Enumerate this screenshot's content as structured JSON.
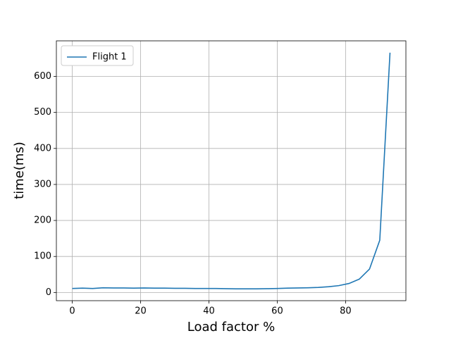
{
  "chart_data": {
    "type": "line",
    "x_label": "Load factor %",
    "y_label": "time(ms)",
    "x": [
      0,
      3,
      6,
      9,
      12,
      15,
      18,
      21,
      24,
      27,
      30,
      33,
      36,
      39,
      42,
      45,
      48,
      51,
      54,
      57,
      60,
      63,
      66,
      69,
      72,
      75,
      78,
      81,
      84,
      87,
      90,
      93
    ],
    "series": [
      {
        "name": "Flight 1",
        "color": "#1f77b4",
        "values": [
          11,
          12,
          11,
          13,
          12.5,
          12.5,
          12,
          12.5,
          12,
          12,
          11.5,
          11.5,
          11,
          11,
          11,
          10.5,
          10,
          10,
          10,
          10.5,
          11,
          12,
          12.5,
          13,
          14,
          16,
          19,
          25,
          37,
          65,
          145,
          666
        ]
      }
    ],
    "xlim": [
      -4.65,
      97.65
    ],
    "ylim": [
      -22.8,
      698.8
    ],
    "xticks": [
      0,
      20,
      40,
      60,
      80
    ],
    "yticks": [
      0,
      100,
      200,
      300,
      400,
      500,
      600
    ],
    "grid": true,
    "legend": "upper left"
  }
}
